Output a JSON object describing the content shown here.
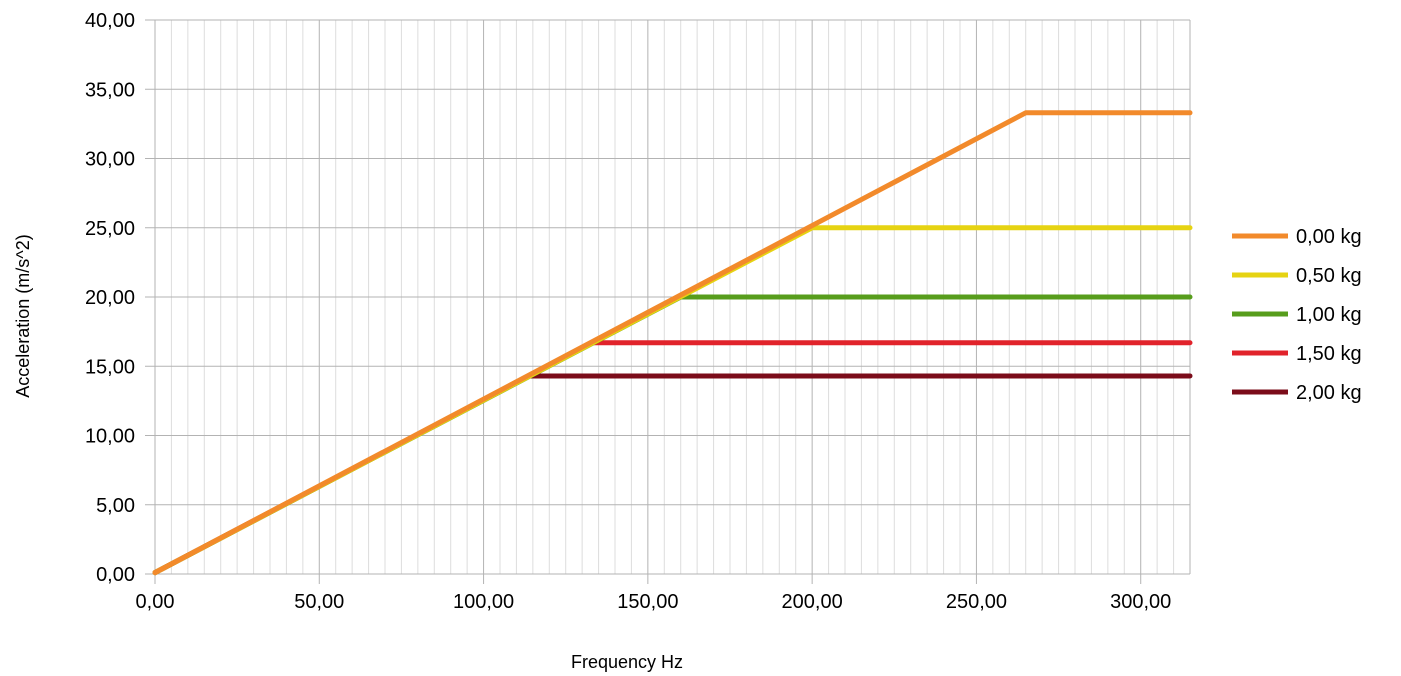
{
  "chart_data": {
    "type": "line",
    "title": "",
    "xlabel": "Frequency Hz",
    "ylabel": "Acceleration (m/s^2)",
    "xlim": [
      0,
      315
    ],
    "ylim": [
      0,
      40
    ],
    "x_ticks": [
      {
        "value": 0,
        "label": "0,00"
      },
      {
        "value": 50,
        "label": "50,00"
      },
      {
        "value": 100,
        "label": "100,00"
      },
      {
        "value": 150,
        "label": "150,00"
      },
      {
        "value": 200,
        "label": "200,00"
      },
      {
        "value": 250,
        "label": "250,00"
      },
      {
        "value": 300,
        "label": "300,00"
      }
    ],
    "y_ticks": [
      {
        "value": 0,
        "label": "0,00"
      },
      {
        "value": 5,
        "label": "5,00"
      },
      {
        "value": 10,
        "label": "10,00"
      },
      {
        "value": 15,
        "label": "15,00"
      },
      {
        "value": 20,
        "label": "20,00"
      },
      {
        "value": 25,
        "label": "25,00"
      },
      {
        "value": 30,
        "label": "30,00"
      },
      {
        "value": 35,
        "label": "35,00"
      },
      {
        "value": 40,
        "label": "40,00"
      }
    ],
    "grid": true,
    "x_minor_step": 5,
    "legend_position": "right",
    "series": [
      {
        "name": "2,00 kg",
        "color": "#7b0c1a",
        "points": [
          [
            0,
            0.1
          ],
          [
            114,
            14.3
          ],
          [
            315,
            14.3
          ]
        ]
      },
      {
        "name": "1,50 kg",
        "color": "#e1232b",
        "points": [
          [
            0,
            0.1
          ],
          [
            133,
            16.7
          ],
          [
            315,
            16.7
          ]
        ]
      },
      {
        "name": "1,00 kg",
        "color": "#579d1c",
        "points": [
          [
            0,
            0.1
          ],
          [
            160,
            20.0
          ],
          [
            315,
            20.0
          ]
        ]
      },
      {
        "name": "0,50 kg",
        "color": "#e6d312",
        "points": [
          [
            0,
            0.1
          ],
          [
            200,
            25.0
          ],
          [
            315,
            25.0
          ]
        ]
      },
      {
        "name": "0,00 kg",
        "color": "#f28a2b",
        "points": [
          [
            0,
            0.1
          ],
          [
            265,
            33.3
          ],
          [
            315,
            33.3
          ]
        ]
      }
    ],
    "legend_order": [
      "0,00 kg",
      "0,50 kg",
      "1,00 kg",
      "1,50 kg",
      "2,00 kg"
    ]
  }
}
